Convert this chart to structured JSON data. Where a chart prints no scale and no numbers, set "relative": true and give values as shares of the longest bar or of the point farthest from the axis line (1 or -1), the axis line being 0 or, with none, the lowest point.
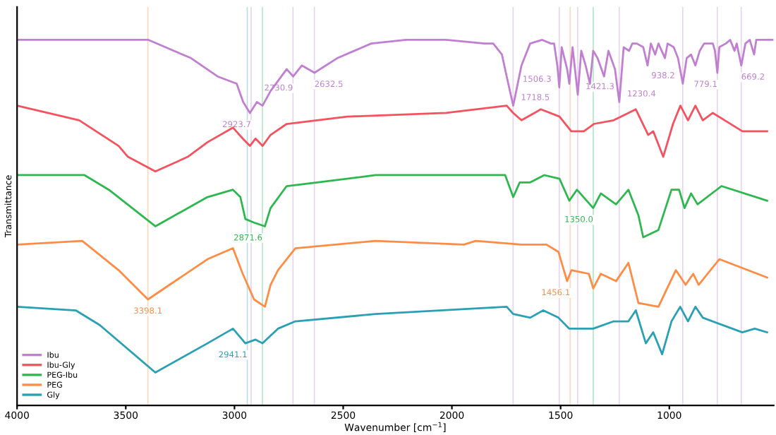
{
  "chart_data": {
    "type": "line",
    "relative": true,
    "xlabel": "Wavenumber [cm$^{−1}$]",
    "ylabel": "Transmittance",
    "xlim": [
      4000,
      520
    ],
    "xticks": [
      4000,
      3500,
      3000,
      2500,
      2000,
      1500,
      1000
    ],
    "legend": "bottom left",
    "grid": false,
    "series": [
      {
        "name": "Ibu",
        "color": "#c07fd0",
        "x": [
          4000,
          3600,
          3396,
          3200,
          3078,
          2990,
          2960,
          2929,
          2897,
          2871,
          2834,
          2760,
          2730,
          2690,
          2632,
          2527,
          2371,
          2210,
          2027,
          1850,
          1810,
          1770,
          1748,
          1718,
          1680,
          1640,
          1585,
          1545,
          1530,
          1515,
          1506,
          1495,
          1470,
          1460,
          1445,
          1421,
          1405,
          1385,
          1365,
          1350,
          1330,
          1300,
          1280,
          1250,
          1230,
          1210,
          1185,
          1170,
          1150,
          1120,
          1100,
          1085,
          1065,
          1050,
          1020,
          1008,
          980,
          960,
          938,
          920,
          900,
          880,
          860,
          840,
          800,
          790,
          779,
          770,
          740,
          720,
          700,
          690,
          669,
          650,
          630,
          610,
          600,
          560,
          525
        ],
        "values": [
          1.0,
          1.0,
          1.0,
          0.95,
          0.9,
          0.88,
          0.83,
          0.8,
          0.83,
          0.82,
          0.86,
          0.92,
          0.9,
          0.93,
          0.91,
          0.95,
          0.99,
          1.0,
          1.0,
          0.99,
          0.99,
          0.96,
          0.9,
          0.82,
          0.93,
          0.99,
          1.0,
          0.99,
          0.99,
          0.93,
          0.87,
          0.98,
          0.92,
          0.88,
          0.98,
          0.85,
          0.97,
          0.93,
          0.88,
          0.97,
          0.95,
          0.9,
          0.97,
          0.92,
          0.83,
          0.98,
          0.97,
          0.99,
          0.99,
          0.98,
          0.93,
          0.99,
          0.96,
          0.99,
          0.95,
          0.99,
          0.98,
          0.95,
          0.88,
          0.95,
          0.96,
          0.93,
          0.97,
          0.99,
          0.99,
          0.97,
          0.91,
          0.98,
          0.99,
          1.0,
          0.97,
          0.99,
          0.93,
          0.99,
          1.0,
          0.96,
          1.0,
          1.0,
          1.0
        ]
      },
      {
        "name": "Ibu-Gly",
        "color": "#f4525f",
        "x": [
          4000,
          3714,
          3533,
          3490,
          3364,
          3215,
          3124,
          3007,
          2962,
          2929,
          2903,
          2871,
          2834,
          2760,
          2481,
          2027,
          1748,
          1718,
          1680,
          1591,
          1505,
          1451,
          1393,
          1347,
          1256,
          1188,
          1154,
          1097,
          1074,
          1028,
          983,
          949,
          914,
          880,
          846,
          800,
          664,
          607,
          550
        ],
        "values": [
          0.82,
          0.78,
          0.71,
          0.68,
          0.64,
          0.68,
          0.72,
          0.76,
          0.73,
          0.71,
          0.73,
          0.71,
          0.74,
          0.77,
          0.79,
          0.8,
          0.82,
          0.8,
          0.78,
          0.81,
          0.79,
          0.75,
          0.75,
          0.77,
          0.78,
          0.8,
          0.81,
          0.74,
          0.75,
          0.68,
          0.77,
          0.82,
          0.78,
          0.82,
          0.78,
          0.8,
          0.75,
          0.75,
          0.75
        ]
      },
      {
        "name": "PEG-Ibu",
        "color": "#2db84f",
        "x": [
          4000,
          3690,
          3578,
          3364,
          3124,
          3007,
          2973,
          2950,
          2910,
          2860,
          2834,
          2760,
          2620,
          2350,
          1935,
          1755,
          1718,
          1688,
          1640,
          1575,
          1505,
          1460,
          1425,
          1350,
          1315,
          1245,
          1188,
          1142,
          1120,
          1050,
          990,
          955,
          930,
          900,
          870,
          760,
          550
        ],
        "values": [
          0.63,
          0.63,
          0.59,
          0.49,
          0.57,
          0.59,
          0.57,
          0.51,
          0.5,
          0.49,
          0.54,
          0.6,
          0.61,
          0.63,
          0.63,
          0.63,
          0.57,
          0.61,
          0.61,
          0.63,
          0.62,
          0.56,
          0.59,
          0.54,
          0.58,
          0.55,
          0.59,
          0.52,
          0.46,
          0.48,
          0.59,
          0.59,
          0.54,
          0.58,
          0.55,
          0.6,
          0.56
        ]
      },
      {
        "name": "PEG",
        "color": "#ff8c45",
        "x": [
          4000,
          3700,
          3533,
          3398,
          3124,
          3007,
          2962,
          2910,
          2860,
          2834,
          2800,
          2720,
          2350,
          1945,
          1890,
          1680,
          1565,
          1510,
          1470,
          1450,
          1370,
          1350,
          1315,
          1245,
          1188,
          1142,
          1050,
          1010,
          970,
          925,
          890,
          865,
          770,
          550
        ],
        "values": [
          0.44,
          0.45,
          0.37,
          0.29,
          0.4,
          0.43,
          0.36,
          0.29,
          0.27,
          0.33,
          0.37,
          0.43,
          0.45,
          0.44,
          0.45,
          0.44,
          0.44,
          0.42,
          0.34,
          0.37,
          0.36,
          0.32,
          0.36,
          0.34,
          0.39,
          0.28,
          0.27,
          0.32,
          0.37,
          0.33,
          0.36,
          0.33,
          0.4,
          0.35
        ]
      },
      {
        "name": "Gly",
        "color": "#2aa0b4",
        "x": [
          4000,
          3730,
          3620,
          3364,
          3124,
          3007,
          2950,
          2903,
          2871,
          2800,
          2720,
          2350,
          1748,
          1718,
          1640,
          1580,
          1510,
          1460,
          1393,
          1350,
          1256,
          1188,
          1154,
          1108,
          1074,
          1033,
          990,
          950,
          914,
          880,
          846,
          664,
          607,
          550
        ],
        "values": [
          0.27,
          0.26,
          0.22,
          0.09,
          0.17,
          0.21,
          0.17,
          0.18,
          0.17,
          0.21,
          0.23,
          0.25,
          0.27,
          0.25,
          0.24,
          0.26,
          0.24,
          0.21,
          0.21,
          0.21,
          0.23,
          0.23,
          0.26,
          0.17,
          0.2,
          0.14,
          0.23,
          0.27,
          0.23,
          0.27,
          0.24,
          0.2,
          0.21,
          0.2
        ]
      }
    ],
    "ref_lines": [
      {
        "axis": "x",
        "value": 3398.1,
        "color": "#ff8c45"
      },
      {
        "axis": "x",
        "value": 2941.1,
        "color": "#2aa0b4"
      },
      {
        "axis": "x",
        "value": 2923.7,
        "color": "#c07fd0"
      },
      {
        "axis": "x",
        "value": 2871.6,
        "color": "#2db84f"
      },
      {
        "axis": "x",
        "value": 2730.9,
        "color": "#c07fd0"
      },
      {
        "axis": "x",
        "value": 2632.5,
        "color": "#c07fd0"
      },
      {
        "axis": "x",
        "value": 1718.5,
        "color": "#c07fd0"
      },
      {
        "axis": "x",
        "value": 1506.3,
        "color": "#c07fd0"
      },
      {
        "axis": "x",
        "value": 1456.1,
        "color": "#ff8c45"
      },
      {
        "axis": "x",
        "value": 1421.3,
        "color": "#c07fd0"
      },
      {
        "axis": "x",
        "value": 1350.0,
        "color": "#2db84f"
      },
      {
        "axis": "x",
        "value": 1230.4,
        "color": "#c07fd0"
      },
      {
        "axis": "x",
        "value": 938.2,
        "color": "#c07fd0"
      },
      {
        "axis": "x",
        "value": 779.1,
        "color": "#c07fd0"
      },
      {
        "axis": "x",
        "value": 669.2,
        "color": "#c07fd0"
      }
    ],
    "annotations": [
      {
        "text": "2923.7",
        "x": 2923.7,
        "y": 0.8
      },
      {
        "text": "2730.9",
        "x": 2730.9,
        "y": 0.9
      },
      {
        "text": "2632.5",
        "x": 2632.5,
        "y": 0.91
      },
      {
        "text": "1718.5",
        "x": 1718.5,
        "y": 0.82
      },
      {
        "text": "1506.3",
        "x": 1506.3,
        "y": 0.87
      },
      {
        "text": "1421.3",
        "x": 1421.3,
        "y": 0.85
      },
      {
        "text": "1230.4",
        "x": 1230.4,
        "y": 0.83
      },
      {
        "text": "938.2",
        "x": 938.2,
        "y": 0.88
      },
      {
        "text": "779.1",
        "x": 779.1,
        "y": 0.91
      },
      {
        "text": "669.2",
        "x": 669.2,
        "y": 0.93
      },
      {
        "text": "2871.6",
        "x": 2871.6,
        "y": 0.49
      },
      {
        "text": "1350.0",
        "x": 1350.0,
        "y": 0.54
      },
      {
        "text": "3398.1",
        "x": 3398.1,
        "y": 0.29
      },
      {
        "text": "1456.1",
        "x": 1456.1,
        "y": 0.34
      },
      {
        "text": "2941.1",
        "x": 2941.1,
        "y": 0.17
      }
    ]
  }
}
